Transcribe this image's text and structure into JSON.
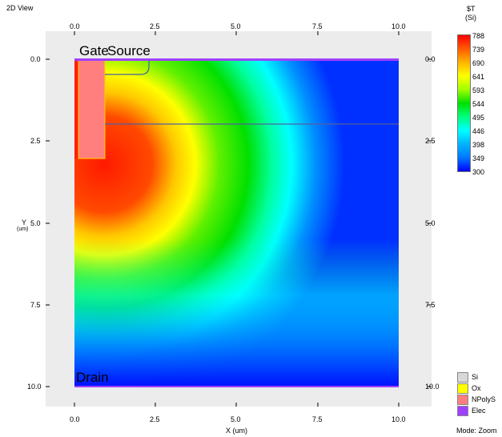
{
  "window": {
    "title": "2D View",
    "mode": "Mode: Zoom"
  },
  "axes": {
    "x_ticks": [
      "0.0",
      "2.5",
      "5.0",
      "7.5",
      "10.0"
    ],
    "y_ticks": [
      "0.0",
      "2.5",
      "5.0",
      "7.5",
      "10.0"
    ],
    "x_label": "X (um)",
    "y_label": "Y",
    "y_unit": "(um)"
  },
  "regions": {
    "gate": "Gate",
    "source": "Source",
    "drain": "Drain"
  },
  "colorbar": {
    "title_line1": "$T",
    "title_line2": "(Si)",
    "values": [
      "788",
      "739",
      "690",
      "641",
      "593",
      "544",
      "495",
      "446",
      "398",
      "349",
      "300"
    ],
    "colors": [
      "#ff0000",
      "#ff5a00",
      "#ffb400",
      "#ffff00",
      "#a0ff00",
      "#00e000",
      "#00ff80",
      "#00ffff",
      "#00b4ff",
      "#0078ff",
      "#0000ff"
    ]
  },
  "legend": [
    {
      "label": "Si",
      "color": "#d8d8d8"
    },
    {
      "label": "Ox",
      "color": "#ffff00"
    },
    {
      "label": "NPolyS",
      "color": "#ff7f7f"
    },
    {
      "label": "Elec",
      "color": "#a040ff"
    }
  ]
}
